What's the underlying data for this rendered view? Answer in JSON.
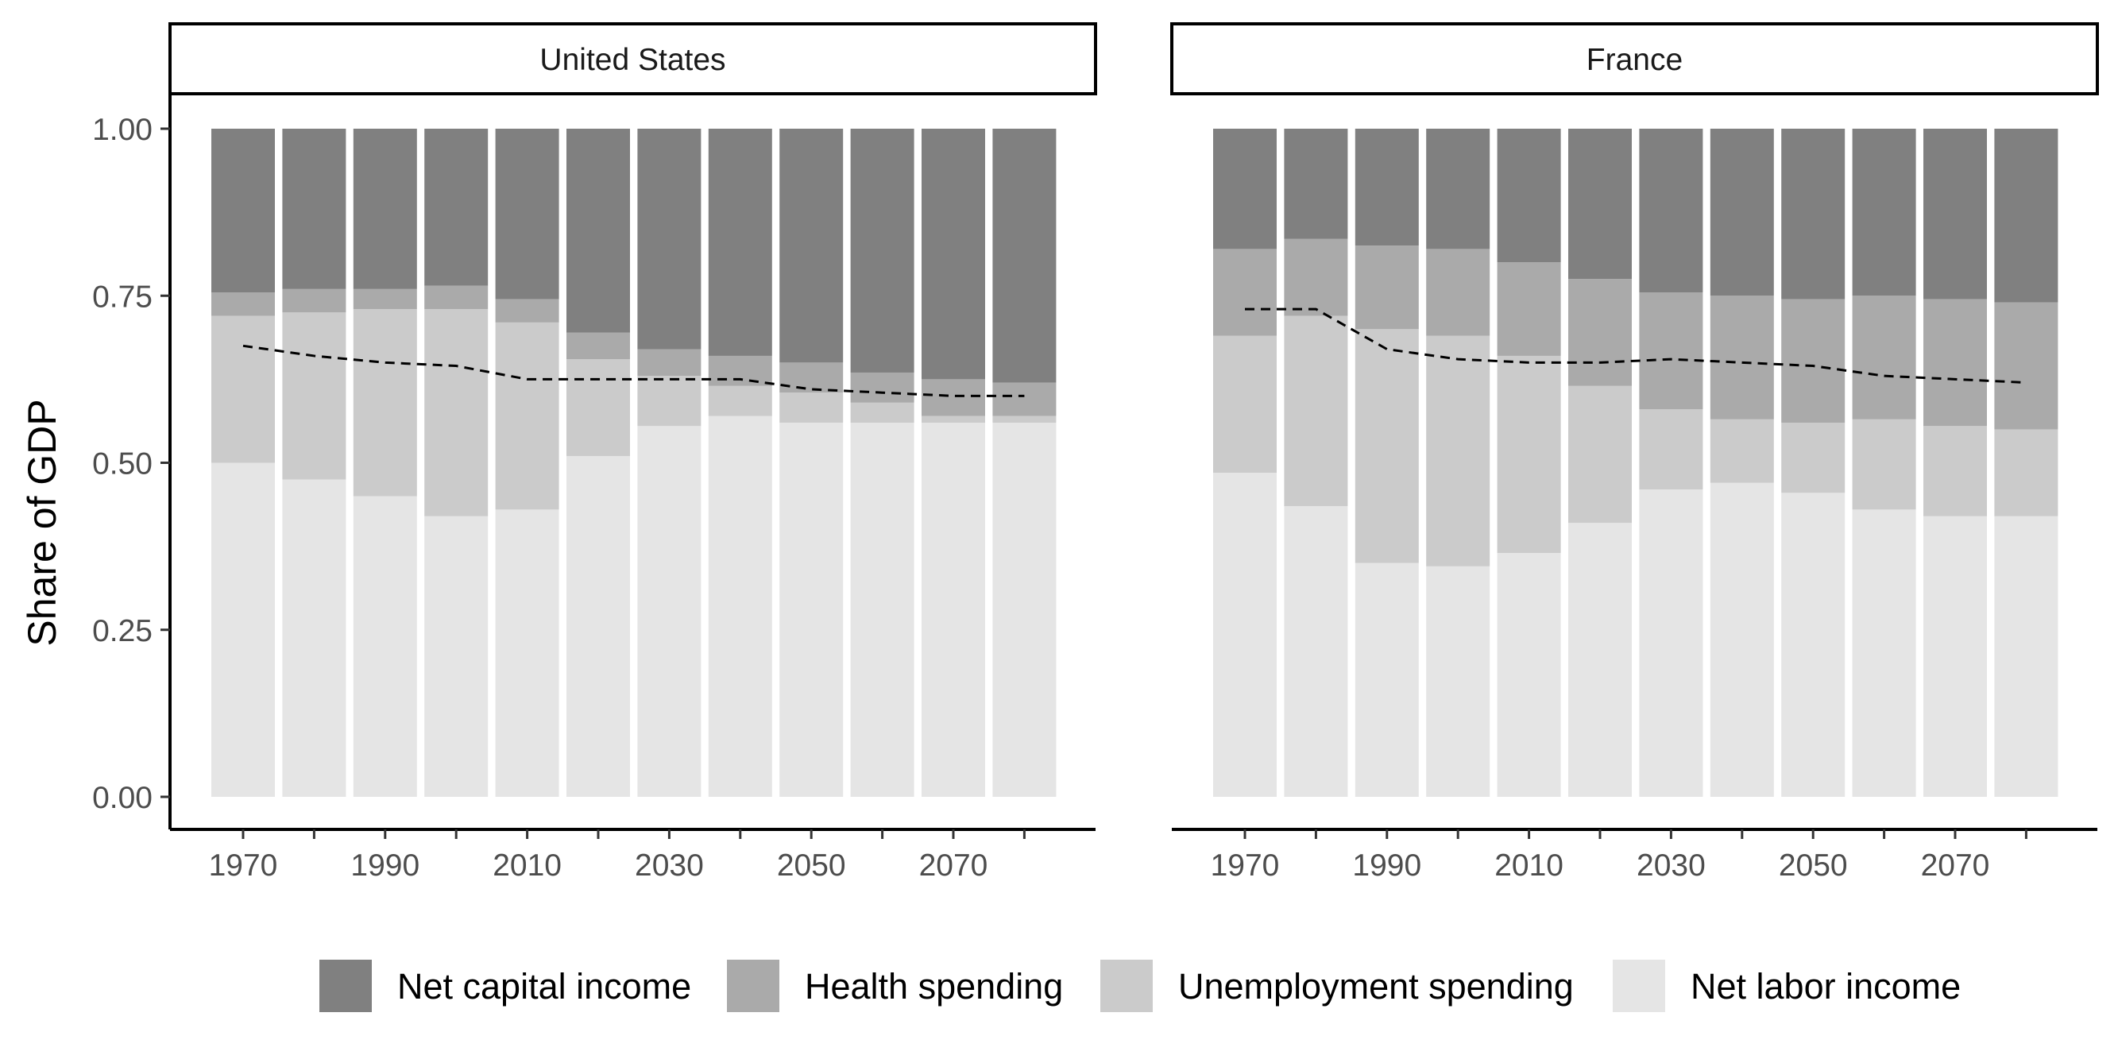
{
  "chart_data": {
    "type": "bar",
    "stacked": true,
    "ylabel": "Share of GDP",
    "xlabel": "",
    "ylim": [
      0,
      1
    ],
    "y_ticks": [
      "0.00",
      "0.25",
      "0.50",
      "0.75",
      "1.00"
    ],
    "x_tick_labels": [
      "1970",
      "1990",
      "2010",
      "2030",
      "2050",
      "2070"
    ],
    "categories": [
      "1970",
      "1980",
      "1990",
      "2000",
      "2010",
      "2020",
      "2030",
      "2040",
      "2050",
      "2060",
      "2070",
      "2080"
    ],
    "legend": {
      "position": "bottom",
      "items": [
        "Net capital income",
        "Health spending",
        "Unemployment spending",
        "Net labor income"
      ]
    },
    "colors": {
      "Net capital income": "#808080",
      "Health spending": "#aaaaaa",
      "Unemployment spending": "#cbcbcb",
      "Net labor income": "#e5e5e5",
      "dashed_line": "#000000"
    },
    "panels": [
      {
        "title": "United States",
        "series": [
          {
            "name": "Net labor income",
            "values": [
              0.5,
              0.475,
              0.45,
              0.42,
              0.43,
              0.51,
              0.555,
              0.57,
              0.56,
              0.56,
              0.56,
              0.56
            ]
          },
          {
            "name": "Unemployment spending",
            "values": [
              0.22,
              0.25,
              0.28,
              0.31,
              0.28,
              0.145,
              0.075,
              0.045,
              0.045,
              0.03,
              0.01,
              0.01
            ]
          },
          {
            "name": "Health spending",
            "values": [
              0.035,
              0.035,
              0.03,
              0.035,
              0.035,
              0.04,
              0.04,
              0.045,
              0.045,
              0.045,
              0.055,
              0.05
            ]
          },
          {
            "name": "Net capital income",
            "values": [
              0.245,
              0.24,
              0.24,
              0.235,
              0.255,
              0.305,
              0.33,
              0.34,
              0.35,
              0.365,
              0.375,
              0.38
            ]
          }
        ],
        "line": {
          "x": [
            1970,
            1980,
            1990,
            2000,
            2010,
            2020,
            2030,
            2040,
            2050,
            2060,
            2070,
            2080
          ],
          "y": [
            0.675,
            0.66,
            0.65,
            0.645,
            0.625,
            0.625,
            0.625,
            0.625,
            0.61,
            0.605,
            0.6,
            0.6
          ]
        }
      },
      {
        "title": "France",
        "series": [
          {
            "name": "Net labor income",
            "values": [
              0.485,
              0.435,
              0.35,
              0.345,
              0.365,
              0.41,
              0.46,
              0.47,
              0.455,
              0.43,
              0.42,
              0.42
            ]
          },
          {
            "name": "Unemployment spending",
            "values": [
              0.205,
              0.285,
              0.35,
              0.345,
              0.295,
              0.205,
              0.12,
              0.095,
              0.105,
              0.135,
              0.135,
              0.13
            ]
          },
          {
            "name": "Health spending",
            "values": [
              0.13,
              0.115,
              0.125,
              0.13,
              0.14,
              0.16,
              0.175,
              0.185,
              0.185,
              0.185,
              0.19,
              0.19
            ]
          },
          {
            "name": "Net capital income",
            "values": [
              0.18,
              0.165,
              0.175,
              0.18,
              0.2,
              0.225,
              0.245,
              0.25,
              0.255,
              0.25,
              0.255,
              0.26
            ]
          }
        ],
        "line": {
          "x": [
            1970,
            1980,
            1990,
            2000,
            2010,
            2020,
            2030,
            2040,
            2050,
            2060,
            2070,
            2080
          ],
          "y": [
            0.73,
            0.73,
            0.67,
            0.655,
            0.65,
            0.65,
            0.655,
            0.65,
            0.645,
            0.63,
            0.625,
            0.62
          ]
        }
      }
    ]
  }
}
